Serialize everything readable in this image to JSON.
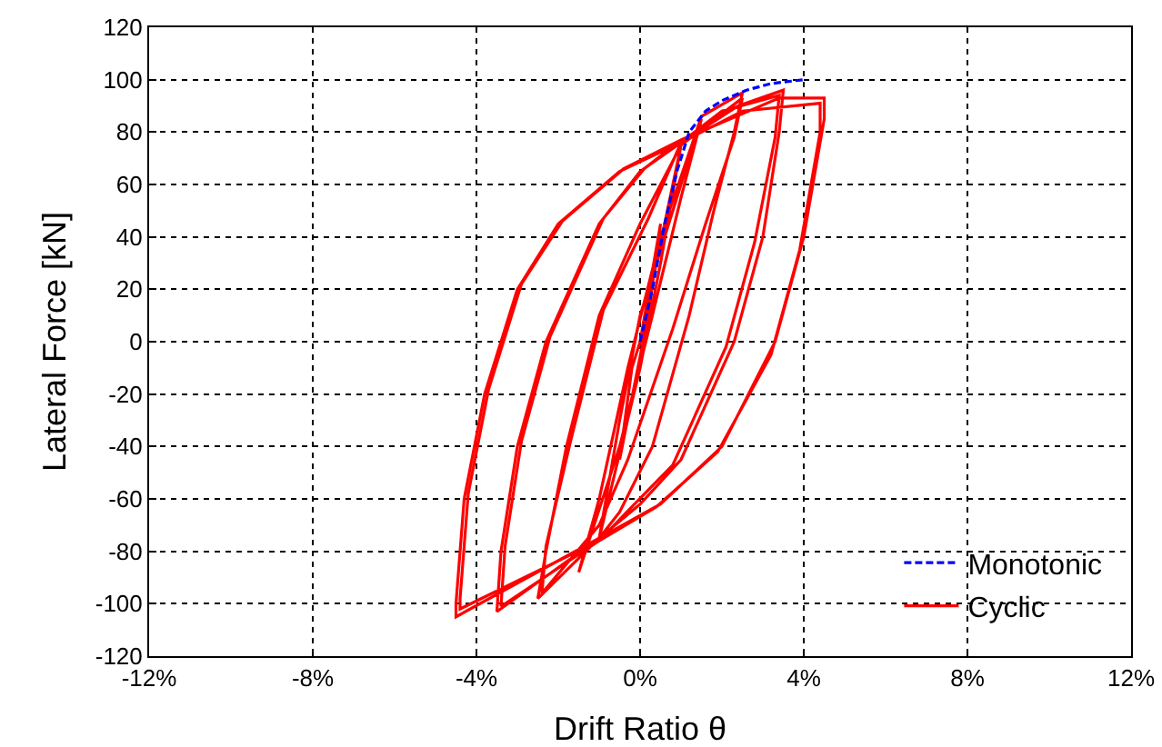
{
  "chart_data": {
    "type": "line",
    "xlabel": "Drift Ratio θ",
    "ylabel": "Lateral Force [kN]",
    "xlim": [
      -12,
      12
    ],
    "ylim": [
      -120,
      120
    ],
    "xticks": [
      {
        "value": -12,
        "label": "-12%"
      },
      {
        "value": -8,
        "label": "-8%"
      },
      {
        "value": -4,
        "label": "-4%"
      },
      {
        "value": 0,
        "label": "0%"
      },
      {
        "value": 4,
        "label": "4%"
      },
      {
        "value": 8,
        "label": "8%"
      },
      {
        "value": 12,
        "label": "12%"
      }
    ],
    "yticks": [
      -120,
      -100,
      -80,
      -60,
      -40,
      -20,
      0,
      20,
      40,
      60,
      80,
      100,
      120
    ],
    "grid": true,
    "legend": "bottom right",
    "series": [
      {
        "name": "Monotonic",
        "color": "#0000ff",
        "line_style": "dashed",
        "x": [
          0,
          0.3,
          0.6,
          0.9,
          1.2,
          1.6,
          2,
          2.6,
          3.2,
          4
        ],
        "values": [
          0,
          20,
          45,
          65,
          80,
          88,
          92,
          96,
          98.5,
          100
        ]
      },
      {
        "name": "Cyclic",
        "color": "#ff0000",
        "line_style": "solid",
        "x": [
          0,
          0.5,
          0.2,
          -0.5,
          -0.2,
          0,
          1,
          0.5,
          0,
          -1,
          -0.5,
          0,
          1.5,
          1,
          0.3,
          -0.5,
          -1.5,
          -1,
          -0.3,
          0.5,
          1.5,
          2.5,
          2.3,
          1.8,
          1.2,
          0.3,
          -0.5,
          -1,
          -2.5,
          -2.3,
          -1.8,
          -1,
          0,
          1,
          2.5,
          2.3,
          1.6,
          0.8,
          -0.3,
          -1,
          -2.4,
          -2.3,
          -1.7,
          -0.9,
          0.2,
          1,
          2.4,
          3.5,
          3.4,
          3,
          2.3,
          1,
          0,
          -1,
          -3.5,
          -3.4,
          -3,
          -2.3,
          -1,
          0,
          1,
          2,
          3.4,
          3.3,
          2.8,
          2.1,
          0.8,
          -0.2,
          -1,
          -3.4,
          -3.3,
          -2.9,
          -2.2,
          -0.9,
          0.1,
          1,
          3.4,
          4.5,
          4.5,
          4,
          3.3,
          2,
          0.5,
          -1,
          -4.5,
          -4.5,
          -4.3,
          -3.8,
          -3,
          -2,
          -0.5,
          1,
          2.5,
          4.4,
          4.4,
          3.9,
          3.2,
          1.9,
          0.4,
          -1,
          -4.4,
          -4.4,
          -4.2,
          -3.7,
          -2.9,
          -1.9,
          -0.4,
          1
        ],
        "values": [
          0,
          45,
          10,
          -45,
          -10,
          0,
          75,
          30,
          -10,
          -75,
          -30,
          10,
          85,
          55,
          10,
          -40,
          -88,
          -60,
          -10,
          40,
          86,
          95,
          80,
          50,
          10,
          -40,
          -65,
          -75,
          -98,
          -80,
          -40,
          10,
          45,
          75,
          93,
          78,
          45,
          5,
          -45,
          -70,
          -96,
          -78,
          -38,
          12,
          47,
          76,
          90,
          96,
          80,
          40,
          0,
          -45,
          -62,
          -75,
          -103,
          -80,
          -40,
          0,
          45,
          65,
          76,
          88,
          94,
          78,
          38,
          -2,
          -47,
          -63,
          -76,
          -101,
          -78,
          -38,
          2,
          47,
          66,
          77,
          93,
          93,
          85,
          40,
          0,
          -40,
          -62,
          -75,
          -105,
          -100,
          -60,
          -20,
          20,
          45,
          65,
          76,
          88,
          91,
          80,
          35,
          -5,
          -42,
          -63,
          -76,
          -102,
          -98,
          -58,
          -18,
          22,
          46,
          66,
          77
        ]
      }
    ]
  }
}
